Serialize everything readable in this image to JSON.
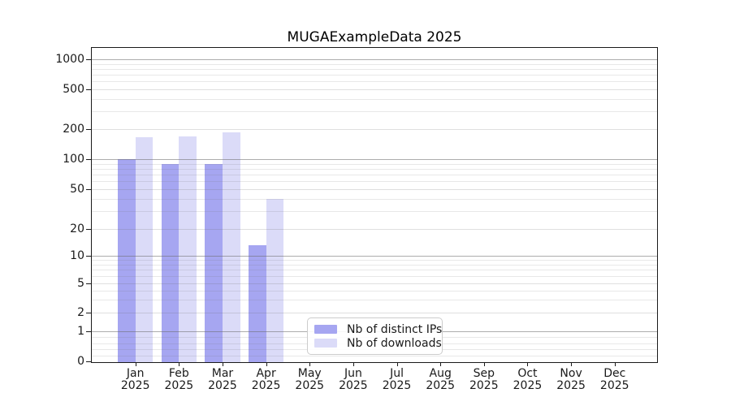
{
  "chart_data": {
    "type": "bar",
    "title": "MUGAExampleData 2025",
    "categories": [
      "Jan 2025",
      "Feb 2025",
      "Mar 2025",
      "Apr 2025",
      "May 2025",
      "Jun 2025",
      "Jul 2025",
      "Aug 2025",
      "Sep 2025",
      "Oct 2025",
      "Nov 2025",
      "Dec 2025"
    ],
    "series": [
      {
        "name": "Nb of distinct IPs",
        "color": "#a6a6f1",
        "values": [
          100,
          90,
          90,
          13,
          0,
          0,
          0,
          0,
          0,
          0,
          0,
          0
        ]
      },
      {
        "name": "Nb of downloads",
        "color": "#dbdbf8",
        "values": [
          165,
          170,
          185,
          40,
          0,
          0,
          0,
          0,
          0,
          0,
          0,
          0
        ]
      }
    ],
    "xlabel": "",
    "ylabel": "",
    "yscale": "symlog",
    "ylim": [
      0,
      1000
    ],
    "yticks": [
      0,
      1,
      2,
      5,
      10,
      20,
      50,
      100,
      200,
      500,
      1000
    ],
    "y_minor_gridlines": [
      0.2,
      0.4,
      0.6,
      0.8,
      3,
      4,
      6,
      7,
      8,
      9,
      30,
      40,
      60,
      70,
      80,
      90,
      300,
      400,
      600,
      700,
      800,
      900
    ],
    "grid": true,
    "legend_position": "inside lower-center"
  }
}
